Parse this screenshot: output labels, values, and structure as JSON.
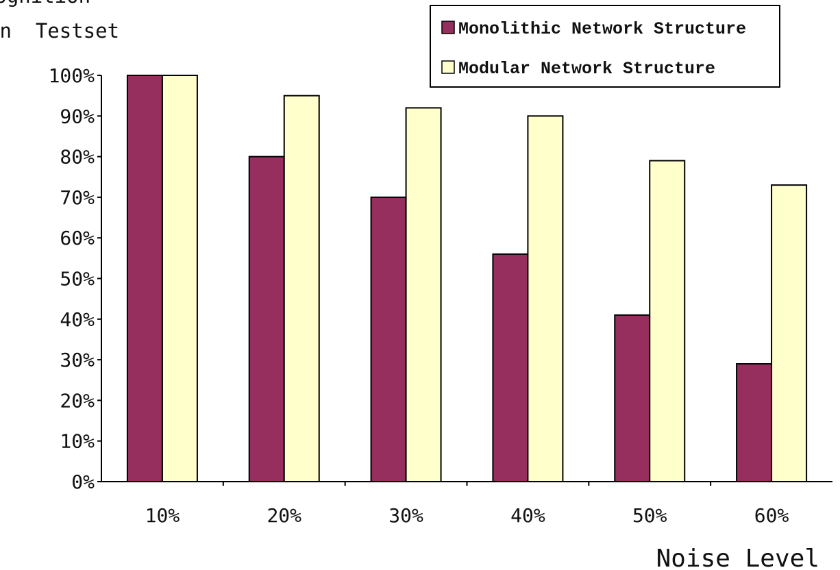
{
  "chart_data": {
    "type": "bar",
    "ylabel_lines": [
      "Recognition",
      "on  Testset"
    ],
    "xlabel": "Noise Level",
    "categories": [
      "10%",
      "20%",
      "30%",
      "40%",
      "50%",
      "60%"
    ],
    "y_ticks": [
      "0%",
      "10%",
      "20%",
      "30%",
      "40%",
      "50%",
      "60%",
      "70%",
      "80%",
      "90%",
      "100%"
    ],
    "ylim": [
      0,
      100
    ],
    "grid": false,
    "legend_position": "top-right",
    "series": [
      {
        "name": "Monolithic Network Structure",
        "color": "#962F5E",
        "values": [
          100,
          80,
          70,
          56,
          41,
          29
        ]
      },
      {
        "name": "Modular Network Structure",
        "color": "#FFFFCC",
        "values": [
          100,
          95,
          92,
          90,
          79,
          73
        ]
      }
    ]
  }
}
